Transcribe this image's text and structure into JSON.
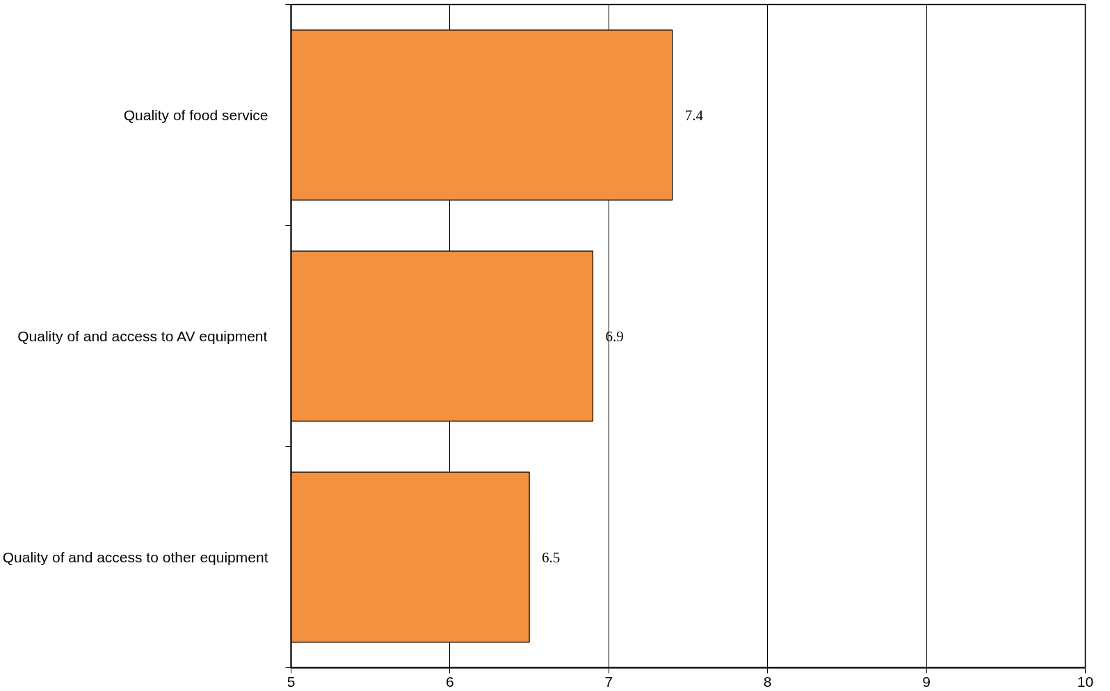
{
  "chart_data": {
    "type": "bar",
    "orientation": "horizontal",
    "categories": [
      "Quality of food service",
      "Quality of and access to AV equipment",
      "Quality of and access to other equipment"
    ],
    "values": [
      7.4,
      6.9,
      6.5
    ],
    "color": "#f39140",
    "xlim": [
      5,
      10
    ],
    "xticks": [
      5,
      6,
      7,
      8,
      9,
      10
    ],
    "grid": "x",
    "data_labels": true
  }
}
